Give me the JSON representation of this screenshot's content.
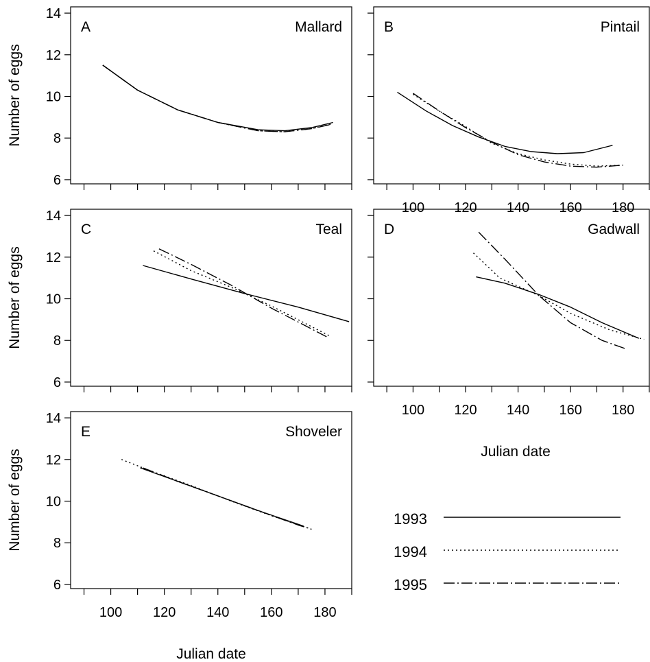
{
  "figure": {
    "xlabel": "Julian date",
    "ylabel": "Number of eggs"
  },
  "chart_data": [
    {
      "type": "line",
      "letter": "A",
      "title": "Mallard",
      "xlim": [
        85,
        190
      ],
      "ylim": [
        5.8,
        14.3
      ],
      "xticks": [
        100,
        120,
        140,
        160,
        180
      ],
      "yticks": [
        6,
        8,
        10,
        12,
        14
      ],
      "series": [
        {
          "name": "1993",
          "points": [
            [
              97,
              11.5
            ],
            [
              110,
              10.3
            ],
            [
              125,
              9.35
            ],
            [
              140,
              8.75
            ],
            [
              155,
              8.4
            ],
            [
              165,
              8.35
            ],
            [
              175,
              8.5
            ],
            [
              183,
              8.75
            ]
          ]
        },
        {
          "name": "1994",
          "points": [
            [
              97,
              11.5
            ],
            [
              110,
              10.3
            ],
            [
              125,
              9.35
            ],
            [
              140,
              8.75
            ],
            [
              155,
              8.35
            ],
            [
              165,
              8.3
            ],
            [
              175,
              8.45
            ],
            [
              183,
              8.7
            ]
          ]
        },
        {
          "name": "1995",
          "points": [
            [
              97,
              11.5
            ],
            [
              110,
              10.3
            ],
            [
              125,
              9.35
            ],
            [
              140,
              8.75
            ],
            [
              155,
              8.35
            ],
            [
              165,
              8.3
            ],
            [
              175,
              8.45
            ],
            [
              182,
              8.65
            ]
          ]
        }
      ]
    },
    {
      "type": "line",
      "letter": "B",
      "title": "Pintail",
      "xlim": [
        85,
        190
      ],
      "ylim": [
        5.8,
        14.3
      ],
      "xticks": [
        100,
        120,
        140,
        160,
        180
      ],
      "yticks": [
        6,
        8,
        10,
        12,
        14
      ],
      "series": [
        {
          "name": "1993",
          "points": [
            [
              94,
              10.2
            ],
            [
              105,
              9.3
            ],
            [
              115,
              8.6
            ],
            [
              125,
              8.05
            ],
            [
              135,
              7.6
            ],
            [
              145,
              7.35
            ],
            [
              155,
              7.25
            ],
            [
              165,
              7.3
            ],
            [
              176,
              7.65
            ]
          ]
        },
        {
          "name": "1994",
          "points": [
            [
              100,
              10.1
            ],
            [
              110,
              9.3
            ],
            [
              120,
              8.55
            ],
            [
              130,
              7.75
            ],
            [
              140,
              7.25
            ],
            [
              150,
              6.95
            ],
            [
              160,
              6.75
            ],
            [
              170,
              6.65
            ],
            [
              180,
              6.7
            ]
          ]
        },
        {
          "name": "1995",
          "points": [
            [
              100,
              10.15
            ],
            [
              110,
              9.3
            ],
            [
              120,
              8.5
            ],
            [
              130,
              7.8
            ],
            [
              140,
              7.2
            ],
            [
              150,
              6.85
            ],
            [
              160,
              6.65
            ],
            [
              170,
              6.6
            ],
            [
              180,
              6.7
            ]
          ]
        }
      ]
    },
    {
      "type": "line",
      "letter": "C",
      "title": "Teal",
      "xlim": [
        85,
        190
      ],
      "ylim": [
        5.8,
        14.3
      ],
      "xticks": [
        100,
        120,
        140,
        160,
        180
      ],
      "yticks": [
        6,
        8,
        10,
        12,
        14
      ],
      "series": [
        {
          "name": "1993",
          "points": [
            [
              112,
              11.6
            ],
            [
              130,
              10.95
            ],
            [
              150,
              10.25
            ],
            [
              170,
              9.6
            ],
            [
              189,
              8.9
            ]
          ]
        },
        {
          "name": "1994",
          "points": [
            [
              116,
              12.3
            ],
            [
              130,
              11.35
            ],
            [
              145,
              10.55
            ],
            [
              160,
              9.65
            ],
            [
              182,
              8.2
            ]
          ]
        },
        {
          "name": "1995",
          "points": [
            [
              118,
              12.4
            ],
            [
              130,
              11.65
            ],
            [
              145,
              10.65
            ],
            [
              160,
              9.55
            ],
            [
              181,
              8.15
            ]
          ]
        }
      ]
    },
    {
      "type": "line",
      "letter": "D",
      "title": "Gadwall",
      "xlim": [
        85,
        190
      ],
      "ylim": [
        5.8,
        14.3
      ],
      "xticks": [
        100,
        120,
        140,
        160,
        180
      ],
      "yticks": [
        6,
        8,
        10,
        12,
        14
      ],
      "series": [
        {
          "name": "1993",
          "points": [
            [
              124,
              11.05
            ],
            [
              135,
              10.75
            ],
            [
              148,
              10.2
            ],
            [
              160,
              9.6
            ],
            [
              172,
              8.85
            ],
            [
              186,
              8.1
            ]
          ]
        },
        {
          "name": "1994",
          "points": [
            [
              123,
              12.2
            ],
            [
              133,
              11.0
            ],
            [
              148,
              10.15
            ],
            [
              160,
              9.3
            ],
            [
              175,
              8.5
            ],
            [
              188,
              8.05
            ]
          ]
        },
        {
          "name": "1995",
          "points": [
            [
              125,
              13.2
            ],
            [
              135,
              11.9
            ],
            [
              148,
              10.15
            ],
            [
              160,
              8.85
            ],
            [
              172,
              8.0
            ],
            [
              181,
              7.6
            ]
          ]
        }
      ]
    },
    {
      "type": "line",
      "letter": "E",
      "title": "Shoveler",
      "xlim": [
        85,
        190
      ],
      "ylim": [
        5.8,
        14.3
      ],
      "xticks": [
        100,
        120,
        140,
        160,
        180
      ],
      "yticks": [
        6,
        8,
        10,
        12,
        14
      ],
      "series": [
        {
          "name": "1993",
          "points": [
            [
              111,
              11.6
            ],
            [
              125,
              10.95
            ],
            [
              140,
              10.25
            ],
            [
              155,
              9.55
            ],
            [
              172,
              8.8
            ]
          ]
        },
        {
          "name": "1994",
          "points": [
            [
              104,
              12.0
            ],
            [
              115,
              11.45
            ],
            [
              130,
              10.75
            ],
            [
              145,
              10.0
            ],
            [
              160,
              9.3
            ],
            [
              174,
              8.7
            ]
          ]
        },
        {
          "name": "1995",
          "points": [
            [
              112,
              11.6
            ],
            [
              125,
              10.95
            ],
            [
              140,
              10.25
            ],
            [
              155,
              9.55
            ],
            [
              170,
              8.85
            ],
            [
              175,
              8.65
            ]
          ]
        }
      ]
    }
  ],
  "legend": [
    {
      "label": "1993",
      "style": "solid"
    },
    {
      "label": "1994",
      "style": "dotted"
    },
    {
      "label": "1995",
      "style": "dashdot"
    }
  ]
}
